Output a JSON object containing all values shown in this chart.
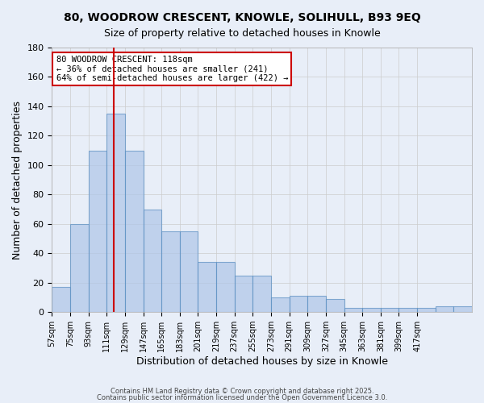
{
  "title1": "80, WOODROW CRESCENT, KNOWLE, SOLIHULL, B93 9EQ",
  "title2": "Size of property relative to detached houses in Knowle",
  "xlabel": "Distribution of detached houses by size in Knowle",
  "ylabel": "Number of detached properties",
  "bar_values": [
    17,
    60,
    110,
    135,
    110,
    70,
    55,
    55,
    34,
    34,
    25,
    25,
    10,
    11,
    11,
    9,
    3,
    3,
    3,
    3,
    3,
    4,
    4
  ],
  "bin_edges": [
    57,
    75,
    93,
    111,
    129,
    147,
    165,
    183,
    201,
    219,
    237,
    255,
    273,
    291,
    309,
    327,
    345,
    363,
    381,
    399,
    417,
    435,
    453
  ],
  "x_tick_labels": [
    "57sqm",
    "75sqm",
    "93sqm",
    "111sqm",
    "129sqm",
    "147sqm",
    "165sqm",
    "183sqm",
    "201sqm",
    "219sqm",
    "237sqm",
    "255sqm",
    "273sqm",
    "291sqm",
    "309sqm",
    "327sqm",
    "345sqm",
    "363sqm",
    "381sqm",
    "399sqm",
    "417sqm"
  ],
  "bar_color": "#aec6e8",
  "bar_edge_color": "#5a8fc2",
  "bar_face_alpha": 0.5,
  "red_line_x": 118,
  "annotation_title": "80 WOODROW CRESCENT: 118sqm",
  "annotation_line1": "← 36% of detached houses are smaller (241)",
  "annotation_line2": "64% of semi-detached houses are larger (422) →",
  "annotation_box_color": "#ffffff",
  "annotation_box_edge": "#cc0000",
  "red_line_color": "#cc0000",
  "grid_color": "#cccccc",
  "background_color": "#e8eef8",
  "ylim": [
    0,
    180
  ],
  "yticks": [
    0,
    20,
    40,
    60,
    80,
    100,
    120,
    140,
    160,
    180
  ],
  "footer1": "Contains HM Land Registry data © Crown copyright and database right 2025.",
  "footer2": "Contains public sector information licensed under the Open Government Licence 3.0."
}
